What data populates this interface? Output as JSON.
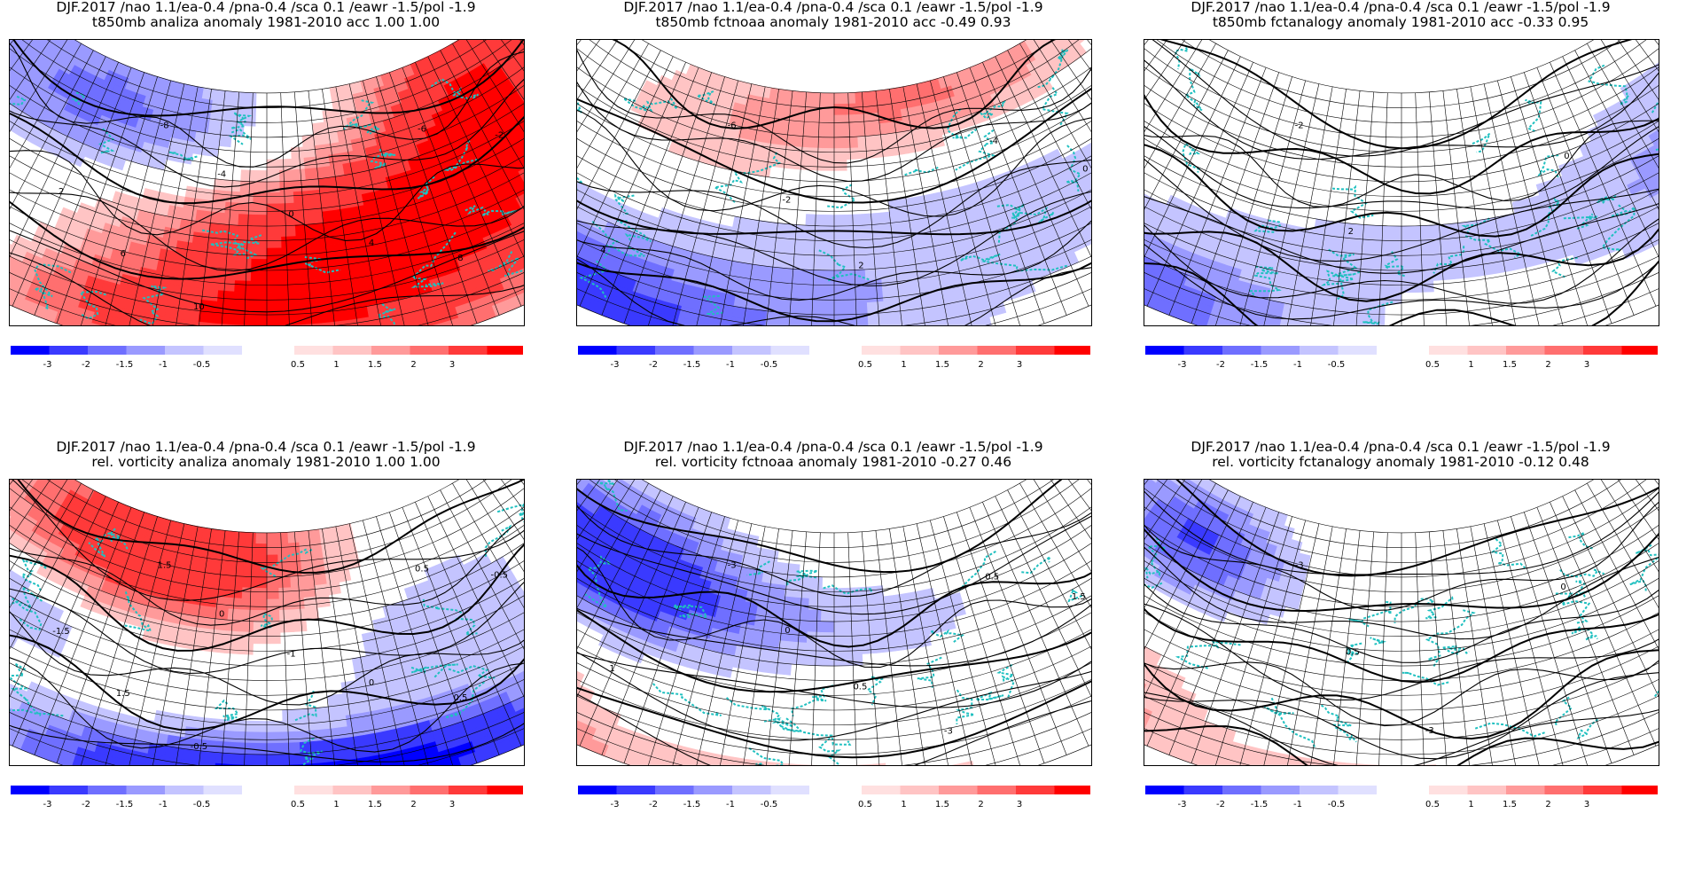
{
  "panels": [
    {
      "title_line1": "DJF.2017 /nao  1.1/ea-0.4 /pna-0.4 /sca 0.1 /eawr -1.5/pol -1.9",
      "title_line2": "t850mb analiza anomaly 1981-2010 acc  1.00  1.00",
      "pattern": "t-analiza",
      "contour_labels": [
        "-8",
        "-6",
        "-4",
        "-2",
        "0",
        "2",
        "4",
        "6",
        "8",
        "10"
      ]
    },
    {
      "title_line1": "DJF.2017 /nao  1.1/ea-0.4 /pna-0.4 /sca 0.1 /eawr -1.5/pol -1.9",
      "title_line2": "t850mb fctnoaa anomaly 1981-2010 acc -0.49  0.93",
      "pattern": "t-fct1",
      "contour_labels": [
        "-6",
        "-4",
        "-2",
        "0",
        "2",
        "4"
      ]
    },
    {
      "title_line1": "DJF.2017 /nao  1.1/ea-0.4 /pna-0.4 /sca 0.1 /eawr -1.5/pol -1.9",
      "title_line2": "t850mb fctanalogy anomaly 1981-2010 acc -0.33  0.95",
      "pattern": "t-fct2",
      "contour_labels": [
        "-2",
        "0",
        "2",
        "4"
      ]
    },
    {
      "title_line1": "DJF.2017   /nao  1.1/ea-0.4 /pna-0.4 /sca 0.1 /eawr -1.5/pol -1.9",
      "title_line2": "rel. vorticity analiza anomaly 1981-2010  1.00  1.00",
      "pattern": "v-analiza",
      "contour_labels": [
        "1.5",
        "0.5",
        "0",
        "-0.5",
        "-1",
        "-1.5",
        "0",
        "1.5",
        "0.5",
        "-0.5"
      ]
    },
    {
      "title_line1": "DJF.2017    /nao  1.1/ea-0.4 /pna-0.4 /sca 0.1 /eawr -1.5/pol -1.9",
      "title_line2": "rel. vorticity fctnoaa anomaly 1981-2010 -0.27  0.46",
      "pattern": "v-fct1",
      "contour_labels": [
        "-3",
        "0.5",
        "0",
        "1.5",
        "0.5",
        "1",
        "-3"
      ]
    },
    {
      "title_line1": "DJF.2017     /nao  1.1/ea-0.4 /pna-0.4 /sca 0.1 /eawr -1.5/pol -1.9",
      "title_line2": "rel. vorticity fctanalogy anomaly 1981-2010 -0.12  0.48",
      "pattern": "v-fct2",
      "contour_labels": [
        "-3",
        "0",
        "0.5",
        "1",
        "-3"
      ]
    }
  ],
  "colorbar": {
    "labels": [
      "-3",
      "-2",
      "-1.5",
      "-1",
      "-0.5",
      "0.5",
      "1",
      "1.5",
      "2",
      "3"
    ],
    "neg_colors": [
      "#0000ff",
      "#3a3aff",
      "#6f6fff",
      "#9a9aff",
      "#c4c4ff",
      "#e0e0ff"
    ],
    "pos_colors": [
      "#ffe0e0",
      "#ffc4c4",
      "#ff9a9a",
      "#ff6f6f",
      "#ff3a3a",
      "#ff0000"
    ]
  },
  "colors": {
    "coastline": "#20c0c0",
    "grid": "#000000"
  }
}
